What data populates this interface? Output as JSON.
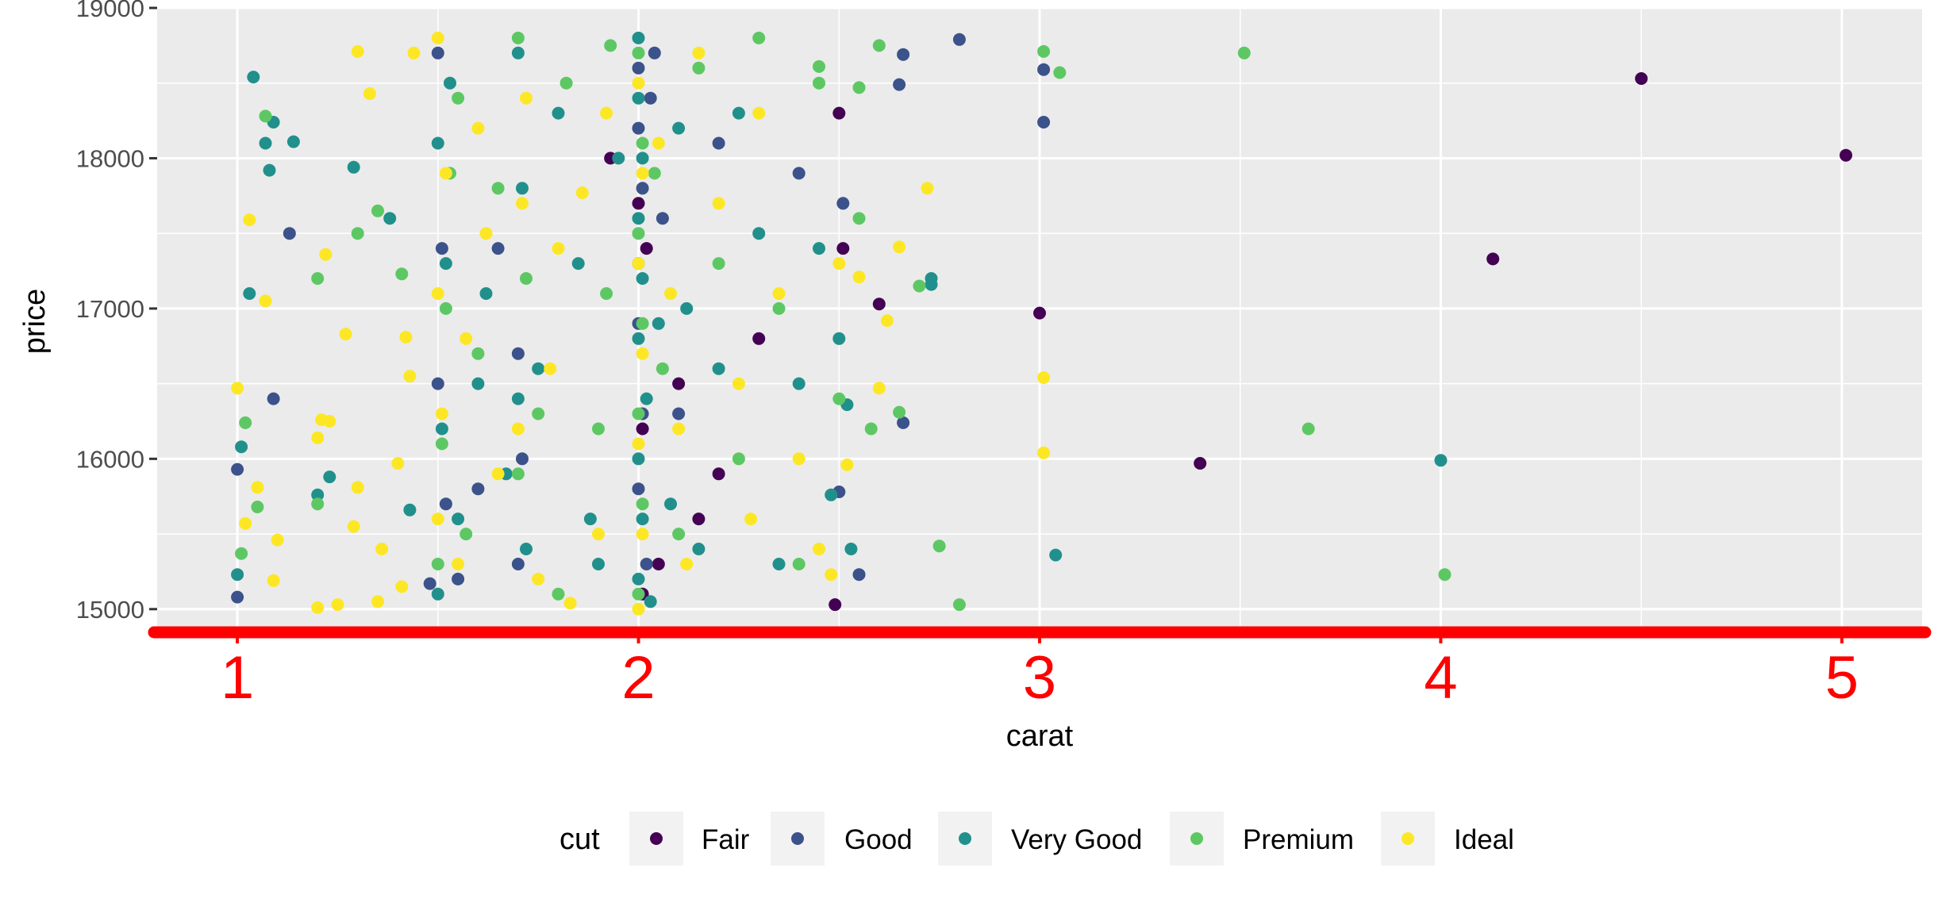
{
  "chart_data": {
    "type": "scatter",
    "title": "",
    "xlabel": "carat",
    "ylabel": "price",
    "xlim": [
      0.8,
      5.2
    ],
    "ylim": [
      14830,
      19000
    ],
    "x_ticks": [
      1,
      2,
      3,
      4,
      5
    ],
    "y_ticks": [
      15000,
      16000,
      17000,
      18000,
      19000
    ],
    "grid": true,
    "panel_background": "#ebebeb",
    "grid_color": "#ffffff",
    "x_axis_color": "#ff0000",
    "x_tick_label_color": "#ff0000",
    "legend": {
      "title": "cut",
      "position": "bottom",
      "entries": [
        "Fair",
        "Good",
        "Very Good",
        "Premium",
        "Ideal"
      ]
    },
    "series": [
      {
        "name": "Fair",
        "color": "#440154",
        "points": [
          [
            1.93,
            18000
          ],
          [
            2.02,
            17400
          ],
          [
            2.1,
            16500
          ],
          [
            2.2,
            15900
          ],
          [
            2.3,
            16800
          ],
          [
            2.05,
            15300
          ],
          [
            2.15,
            15600
          ],
          [
            2.49,
            15030
          ],
          [
            2.5,
            18300
          ],
          [
            2.51,
            17400
          ],
          [
            2.6,
            17030
          ],
          [
            3.0,
            16970
          ],
          [
            3.4,
            15970
          ],
          [
            4.13,
            17330
          ],
          [
            4.5,
            18530
          ],
          [
            5.01,
            18020
          ],
          [
            2.01,
            16200
          ],
          [
            2.01,
            15100
          ],
          [
            2.0,
            17700
          ]
        ]
      },
      {
        "name": "Good",
        "color": "#3b528b",
        "points": [
          [
            1.0,
            15930
          ],
          [
            1.0,
            15080
          ],
          [
            1.09,
            16400
          ],
          [
            1.13,
            17500
          ],
          [
            1.5,
            18700
          ],
          [
            1.51,
            17400
          ],
          [
            1.5,
            16500
          ],
          [
            1.52,
            15700
          ],
          [
            1.55,
            15200
          ],
          [
            1.6,
            15800
          ],
          [
            1.65,
            17400
          ],
          [
            1.7,
            16700
          ],
          [
            1.7,
            15300
          ],
          [
            1.71,
            16000
          ],
          [
            2.0,
            18600
          ],
          [
            2.0,
            18200
          ],
          [
            2.01,
            17800
          ],
          [
            2.0,
            17300
          ],
          [
            2.0,
            16900
          ],
          [
            2.01,
            16300
          ],
          [
            2.0,
            15800
          ],
          [
            2.02,
            15300
          ],
          [
            2.04,
            18700
          ],
          [
            2.03,
            18400
          ],
          [
            2.06,
            17600
          ],
          [
            2.1,
            16300
          ],
          [
            2.2,
            18100
          ],
          [
            2.4,
            17900
          ],
          [
            2.5,
            15780
          ],
          [
            2.51,
            17700
          ],
          [
            2.55,
            15230
          ],
          [
            2.65,
            18490
          ],
          [
            2.66,
            18690
          ],
          [
            2.66,
            16240
          ],
          [
            2.8,
            18790
          ],
          [
            3.01,
            18590
          ],
          [
            3.01,
            18240
          ],
          [
            1.48,
            15170
          ]
        ]
      },
      {
        "name": "Very Good",
        "color": "#21908c",
        "points": [
          [
            1.0,
            15230
          ],
          [
            1.01,
            16080
          ],
          [
            1.03,
            17100
          ],
          [
            1.04,
            18540
          ],
          [
            1.07,
            18100
          ],
          [
            1.08,
            17920
          ],
          [
            1.09,
            18240
          ],
          [
            1.14,
            18110
          ],
          [
            1.2,
            15760
          ],
          [
            1.23,
            15880
          ],
          [
            1.29,
            17940
          ],
          [
            1.38,
            17600
          ],
          [
            1.43,
            15660
          ],
          [
            1.5,
            15100
          ],
          [
            1.51,
            16200
          ],
          [
            1.52,
            17300
          ],
          [
            1.5,
            18100
          ],
          [
            1.53,
            18500
          ],
          [
            1.55,
            15600
          ],
          [
            1.6,
            16500
          ],
          [
            1.62,
            17100
          ],
          [
            1.67,
            15900
          ],
          [
            1.7,
            18700
          ],
          [
            1.71,
            17800
          ],
          [
            1.7,
            16400
          ],
          [
            1.72,
            15400
          ],
          [
            1.75,
            16600
          ],
          [
            1.8,
            18300
          ],
          [
            1.85,
            17300
          ],
          [
            1.88,
            15600
          ],
          [
            1.9,
            15300
          ],
          [
            1.95,
            18000
          ],
          [
            2.0,
            18800
          ],
          [
            2.0,
            18400
          ],
          [
            2.01,
            18000
          ],
          [
            2.0,
            17600
          ],
          [
            2.01,
            17200
          ],
          [
            2.0,
            16800
          ],
          [
            2.02,
            16400
          ],
          [
            2.0,
            16000
          ],
          [
            2.01,
            15600
          ],
          [
            2.0,
            15200
          ],
          [
            2.03,
            15050
          ],
          [
            2.05,
            16900
          ],
          [
            2.08,
            15700
          ],
          [
            2.1,
            18200
          ],
          [
            2.12,
            17000
          ],
          [
            2.15,
            15400
          ],
          [
            2.2,
            16600
          ],
          [
            2.25,
            18300
          ],
          [
            2.3,
            17500
          ],
          [
            2.35,
            15300
          ],
          [
            2.4,
            16500
          ],
          [
            2.45,
            17400
          ],
          [
            2.5,
            16800
          ],
          [
            2.52,
            16360
          ],
          [
            2.53,
            15400
          ],
          [
            2.73,
            17160
          ],
          [
            2.73,
            17200
          ],
          [
            3.04,
            15360
          ],
          [
            4.0,
            15990
          ],
          [
            2.48,
            15760
          ]
        ]
      },
      {
        "name": "Premium",
        "color": "#5dc863",
        "points": [
          [
            1.01,
            15370
          ],
          [
            1.02,
            16240
          ],
          [
            1.05,
            15680
          ],
          [
            1.07,
            18280
          ],
          [
            1.2,
            17200
          ],
          [
            1.2,
            15700
          ],
          [
            1.3,
            17500
          ],
          [
            1.35,
            17650
          ],
          [
            1.41,
            17230
          ],
          [
            1.5,
            15300
          ],
          [
            1.51,
            16100
          ],
          [
            1.52,
            17000
          ],
          [
            1.53,
            17900
          ],
          [
            1.55,
            18400
          ],
          [
            1.57,
            15500
          ],
          [
            1.6,
            16700
          ],
          [
            1.65,
            17800
          ],
          [
            1.7,
            18800
          ],
          [
            1.7,
            15900
          ],
          [
            1.72,
            17200
          ],
          [
            1.75,
            16300
          ],
          [
            1.8,
            15100
          ],
          [
            1.82,
            18500
          ],
          [
            1.9,
            16200
          ],
          [
            1.92,
            17100
          ],
          [
            1.93,
            18750
          ],
          [
            2.0,
            18700
          ],
          [
            2.01,
            18100
          ],
          [
            2.0,
            17500
          ],
          [
            2.01,
            16900
          ],
          [
            2.0,
            16300
          ],
          [
            2.01,
            15700
          ],
          [
            2.0,
            15100
          ],
          [
            2.04,
            17900
          ],
          [
            2.06,
            16600
          ],
          [
            2.1,
            15500
          ],
          [
            2.15,
            18600
          ],
          [
            2.2,
            17300
          ],
          [
            2.25,
            16000
          ],
          [
            2.3,
            18800
          ],
          [
            2.35,
            17000
          ],
          [
            2.4,
            15300
          ],
          [
            2.45,
            18500
          ],
          [
            2.5,
            16400
          ],
          [
            2.55,
            17600
          ],
          [
            2.58,
            16200
          ],
          [
            2.65,
            16310
          ],
          [
            2.7,
            17150
          ],
          [
            2.75,
            15420
          ],
          [
            2.8,
            15030
          ],
          [
            3.01,
            18710
          ],
          [
            3.05,
            18570
          ],
          [
            3.51,
            18700
          ],
          [
            3.67,
            16200
          ],
          [
            4.01,
            15230
          ],
          [
            2.6,
            18750
          ],
          [
            2.55,
            18470
          ],
          [
            2.45,
            18610
          ]
        ]
      },
      {
        "name": "Ideal",
        "color": "#fde725",
        "points": [
          [
            1.0,
            16470
          ],
          [
            1.02,
            15570
          ],
          [
            1.03,
            17590
          ],
          [
            1.05,
            15810
          ],
          [
            1.07,
            17050
          ],
          [
            1.09,
            15190
          ],
          [
            1.1,
            15460
          ],
          [
            1.2,
            15010
          ],
          [
            1.21,
            16260
          ],
          [
            1.2,
            16140
          ],
          [
            1.22,
            17360
          ],
          [
            1.23,
            16250
          ],
          [
            1.25,
            15030
          ],
          [
            1.27,
            16830
          ],
          [
            1.29,
            15550
          ],
          [
            1.3,
            15810
          ],
          [
            1.3,
            18710
          ],
          [
            1.33,
            18430
          ],
          [
            1.35,
            15050
          ],
          [
            1.36,
            15400
          ],
          [
            1.4,
            15970
          ],
          [
            1.41,
            15150
          ],
          [
            1.42,
            16810
          ],
          [
            1.43,
            16550
          ],
          [
            1.44,
            18700
          ],
          [
            1.5,
            15600
          ],
          [
            1.51,
            16300
          ],
          [
            1.5,
            17100
          ],
          [
            1.52,
            17900
          ],
          [
            1.5,
            18800
          ],
          [
            1.55,
            15300
          ],
          [
            1.57,
            16800
          ],
          [
            1.6,
            18200
          ],
          [
            1.62,
            17500
          ],
          [
            1.65,
            15900
          ],
          [
            1.7,
            16200
          ],
          [
            1.71,
            17700
          ],
          [
            1.72,
            18400
          ],
          [
            1.75,
            15200
          ],
          [
            1.78,
            16600
          ],
          [
            1.8,
            17400
          ],
          [
            1.83,
            15040
          ],
          [
            1.86,
            17770
          ],
          [
            1.9,
            15500
          ],
          [
            1.92,
            18300
          ],
          [
            2.0,
            18500
          ],
          [
            2.01,
            17900
          ],
          [
            2.0,
            17300
          ],
          [
            2.01,
            16700
          ],
          [
            2.0,
            16100
          ],
          [
            2.01,
            15500
          ],
          [
            2.0,
            15000
          ],
          [
            2.05,
            18100
          ],
          [
            2.08,
            17100
          ],
          [
            2.1,
            16200
          ],
          [
            2.12,
            15300
          ],
          [
            2.15,
            18700
          ],
          [
            2.2,
            17700
          ],
          [
            2.25,
            16500
          ],
          [
            2.28,
            15600
          ],
          [
            2.3,
            18300
          ],
          [
            2.35,
            17100
          ],
          [
            2.4,
            16000
          ],
          [
            2.45,
            15400
          ],
          [
            2.5,
            17300
          ],
          [
            2.52,
            15960
          ],
          [
            2.55,
            17210
          ],
          [
            2.6,
            16470
          ],
          [
            2.62,
            16920
          ],
          [
            2.65,
            17410
          ],
          [
            2.72,
            17800
          ],
          [
            3.01,
            16540
          ],
          [
            3.01,
            16040
          ],
          [
            2.48,
            15230
          ]
        ]
      }
    ]
  }
}
